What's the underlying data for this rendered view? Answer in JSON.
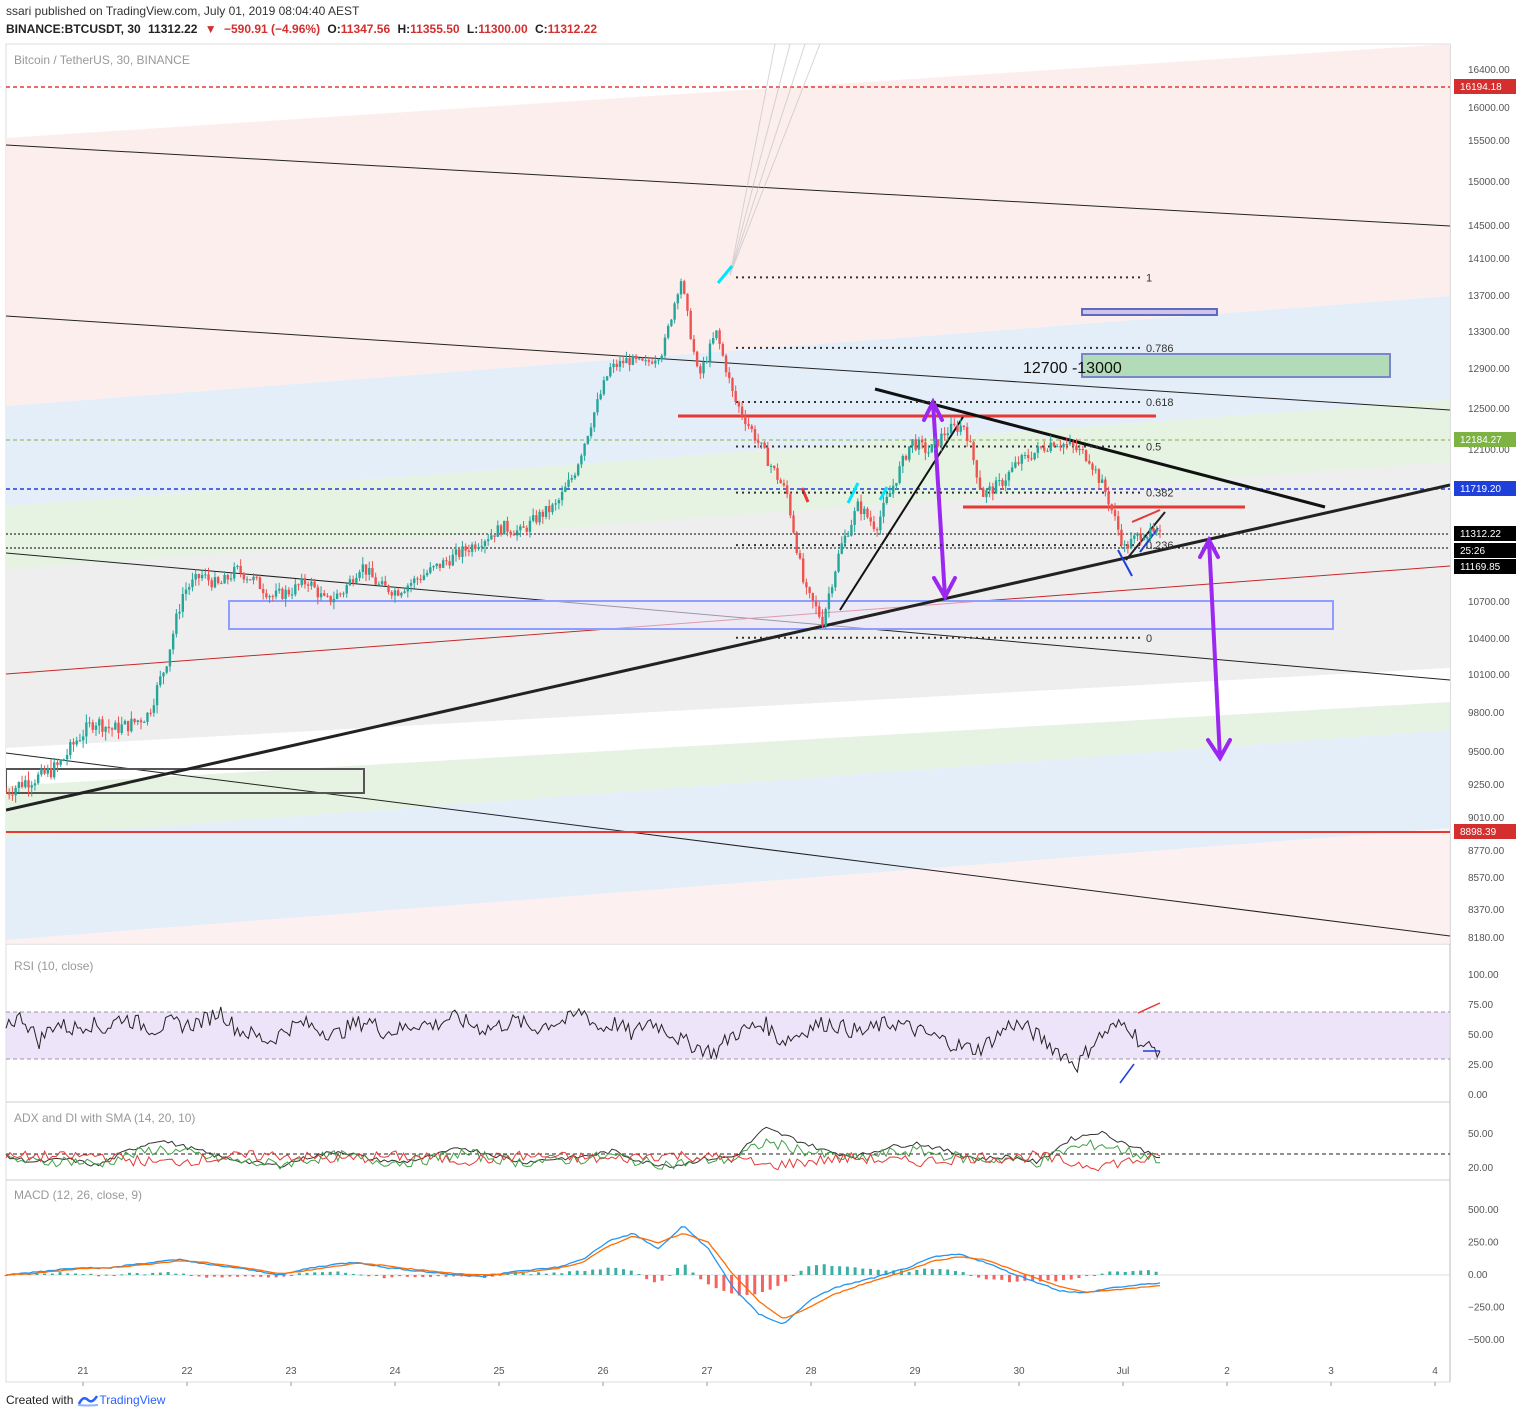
{
  "header": {
    "publisher_line": "ssari published on TradingView.com, July 01, 2019 08:04:40 AEST",
    "symbol": "BINANCE:BTCUSDT, 30",
    "last": "11312.22",
    "change": "−590.91 (−4.96%)",
    "open_label": "O:",
    "open": "11347.56",
    "high_label": "H:",
    "high": "11355.50",
    "low_label": "L:",
    "low": "11300.00",
    "close_label": "C:",
    "close": "11312.22"
  },
  "footer": {
    "created_with": "Created with",
    "brand": "TradingView"
  },
  "colors": {
    "up": "#26a69a",
    "down": "#ef5350",
    "accent_purple": "#9c27b0",
    "tv_blue": "#2962ff"
  },
  "chart_data": [
    {
      "type": "line",
      "pane": "price",
      "title": "Bitcoin / TetherUS, 30, BINANCE",
      "x_ticks": [
        "21",
        "22",
        "23",
        "24",
        "25",
        "26",
        "27",
        "28",
        "29",
        "30",
        "Jul",
        "2",
        "3",
        "4"
      ],
      "y_ticks": [
        "16400.00",
        "16000.00",
        "15500.00",
        "15000.00",
        "14500.00",
        "14100.00",
        "13700.00",
        "13300.00",
        "12900.00",
        "12500.00",
        "12100.00",
        "10700.00",
        "10400.00",
        "10100.00",
        "9800.00",
        "9500.00",
        "9250.00",
        "9010.00",
        "8770.00",
        "8570.00",
        "8370.00",
        "8180.00"
      ],
      "price_tags": [
        {
          "label": "16194.18",
          "color": "#d32f2f"
        },
        {
          "label": "12184.27",
          "color": "#7cb342"
        },
        {
          "label": "11719.20",
          "color": "#1e3fd8"
        },
        {
          "label": "11312.22",
          "color": "#000000"
        },
        {
          "label": "25:26",
          "color": "#000000"
        },
        {
          "label": "11169.85",
          "color": "#000000"
        },
        {
          "label": "8898.39",
          "color": "#d32f2f"
        }
      ],
      "fib_levels": [
        {
          "label": "1",
          "price": 13900
        },
        {
          "label": "0.786",
          "price": 13130
        },
        {
          "label": "0.618",
          "price": 12570
        },
        {
          "label": "0.5",
          "price": 12150
        },
        {
          "label": "0.382",
          "price": 11720
        },
        {
          "label": "0.236",
          "price": 11230
        },
        {
          "label": "0",
          "price": 10410
        }
      ],
      "annotation": "12700 -13000",
      "series": [
        {
          "values": [
            9200,
            9280,
            9320,
            9400,
            9600,
            9750,
            9680,
            9720,
            9800,
            10200,
            10800,
            10950,
            10850,
            11000,
            10900,
            10750,
            10800,
            10900,
            10700,
            10800,
            11050,
            10850,
            10800,
            10900,
            11000,
            11100,
            11200,
            11300,
            11400,
            11350,
            11500,
            11600,
            11900,
            12400,
            12900,
            13000,
            12950,
            13100,
            13900,
            12800,
            13300,
            12600,
            12300,
            12000,
            11700,
            10800,
            10550,
            11200,
            11600,
            11400,
            11800,
            12200,
            12100,
            12300,
            12350,
            11700,
            11800,
            12000,
            12100,
            12200,
            12150,
            12050,
            11700,
            11200,
            11350,
            11312
          ]
        }
      ]
    },
    {
      "type": "line",
      "pane": "rsi",
      "title": "RSI (10, close)",
      "y_ticks": [
        "100.00",
        "75.00",
        "50.00",
        "25.00",
        "0.00"
      ],
      "series": [
        {
          "values": [
            60,
            65,
            45,
            60,
            55,
            60,
            55,
            65,
            60,
            55,
            60,
            58,
            62,
            70,
            55,
            50,
            45,
            55,
            60,
            55,
            50,
            58,
            62,
            52,
            55,
            60,
            58,
            65,
            60,
            55,
            58,
            62,
            55,
            60,
            62,
            70,
            55,
            60,
            50,
            62,
            55,
            45,
            40,
            35,
            50,
            55,
            60,
            45,
            50,
            58,
            60,
            55,
            52,
            58,
            60,
            55,
            50,
            45,
            40,
            38,
            48,
            60,
            55,
            45,
            35,
            25,
            45,
            55,
            60,
            40,
            38
          ]
        }
      ]
    },
    {
      "type": "line",
      "pane": "adx",
      "title": "ADX and DI with SMA (14, 20, 10)",
      "y_ticks": [
        "50.00",
        "20.00"
      ],
      "series": [
        {
          "name": "ADX",
          "values": [
            30,
            25,
            28,
            22,
            35,
            45,
            38,
            30,
            25,
            22,
            30,
            35,
            28,
            25,
            30,
            38,
            32,
            25,
            28,
            30,
            35,
            25,
            22,
            28,
            30,
            55,
            45,
            35,
            30,
            38,
            42,
            35,
            28,
            30,
            25,
            45,
            52,
            40,
            30
          ]
        }
      ]
    },
    {
      "type": "line",
      "pane": "macd",
      "title": "MACD (12, 26, close, 9)",
      "y_ticks": [
        "500.00",
        "250.00",
        "0.00",
        "−250.00",
        "−500.00"
      ],
      "series": [
        {
          "name": "MACD",
          "values": [
            0,
            20,
            40,
            60,
            50,
            80,
            100,
            120,
            80,
            60,
            30,
            0,
            50,
            80,
            100,
            60,
            40,
            20,
            0,
            -10,
            20,
            40,
            60,
            120,
            260,
            320,
            200,
            380,
            200,
            -100,
            -300,
            -380,
            -200,
            -100,
            -50,
            0,
            60,
            140,
            160,
            100,
            20,
            -50,
            -120,
            -140,
            -100,
            -80,
            -60
          ]
        },
        {
          "name": "Signal",
          "values": [
            0,
            10,
            30,
            50,
            55,
            70,
            90,
            110,
            95,
            70,
            40,
            10,
            35,
            65,
            90,
            75,
            50,
            30,
            10,
            0,
            10,
            30,
            50,
            100,
            220,
            300,
            250,
            320,
            250,
            0,
            -200,
            -340,
            -250,
            -150,
            -80,
            -20,
            40,
            110,
            140,
            120,
            50,
            -20,
            -90,
            -130,
            -120,
            -100,
            -80
          ]
        }
      ]
    }
  ]
}
